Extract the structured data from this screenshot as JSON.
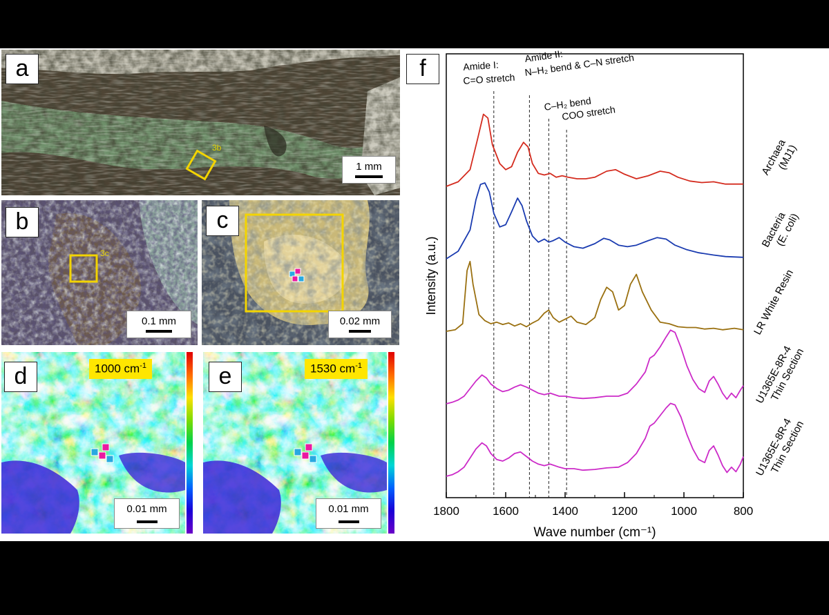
{
  "panels": {
    "a": {
      "letter": "a",
      "box_label": "3b",
      "scale": "1 mm"
    },
    "b": {
      "letter": "b",
      "box_label": "3c",
      "scale": "0.1 mm"
    },
    "c": {
      "letter": "c",
      "scale": "0.02 mm"
    },
    "d": {
      "letter": "d",
      "wavenumber": "1000 cm",
      "wavenumber_sup": "-1",
      "scale": "0.01 mm"
    },
    "e": {
      "letter": "e",
      "wavenumber": "1530 cm",
      "wavenumber_sup": "-1",
      "scale": "0.01 mm"
    },
    "f": {
      "letter": "f"
    }
  },
  "chart_data": {
    "type": "line",
    "xlabel": "Wave number (cm⁻¹)",
    "ylabel": "Intensity (a.u.)",
    "xlim": [
      1800,
      800
    ],
    "xticks": [
      1800,
      1600,
      1400,
      1200,
      1000,
      800
    ],
    "annotations": [
      {
        "text": [
          "Amide I:",
          "C=O stretch"
        ],
        "x": 1640
      },
      {
        "text": [
          "Amide II:",
          "N–H₂ bend & C–N stretch"
        ],
        "x": 1520
      },
      {
        "text": [
          "C–H₂ bend"
        ],
        "x": 1455
      },
      {
        "text": [
          "COO stretch"
        ],
        "x": 1395
      }
    ],
    "series": [
      {
        "name": "Archaea (MJ1)",
        "label_lines": [
          "Archaea",
          "(MJ1)"
        ],
        "color": "#d42b1e",
        "offset": 0.0,
        "points": [
          [
            1800,
            0.0
          ],
          [
            1760,
            0.06
          ],
          [
            1720,
            0.22
          ],
          [
            1695,
            0.62
          ],
          [
            1675,
            0.95
          ],
          [
            1660,
            0.9
          ],
          [
            1645,
            0.55
          ],
          [
            1620,
            0.3
          ],
          [
            1600,
            0.22
          ],
          [
            1580,
            0.26
          ],
          [
            1560,
            0.45
          ],
          [
            1540,
            0.58
          ],
          [
            1525,
            0.52
          ],
          [
            1510,
            0.3
          ],
          [
            1490,
            0.17
          ],
          [
            1470,
            0.15
          ],
          [
            1450,
            0.17
          ],
          [
            1430,
            0.12
          ],
          [
            1410,
            0.14
          ],
          [
            1390,
            0.12
          ],
          [
            1360,
            0.1
          ],
          [
            1330,
            0.1
          ],
          [
            1300,
            0.12
          ],
          [
            1260,
            0.2
          ],
          [
            1230,
            0.22
          ],
          [
            1200,
            0.16
          ],
          [
            1160,
            0.1
          ],
          [
            1120,
            0.14
          ],
          [
            1080,
            0.2
          ],
          [
            1050,
            0.18
          ],
          [
            1020,
            0.12
          ],
          [
            980,
            0.07
          ],
          [
            940,
            0.05
          ],
          [
            900,
            0.06
          ],
          [
            860,
            0.03
          ],
          [
            820,
            0.03
          ],
          [
            800,
            0.03
          ]
        ]
      },
      {
        "name": "Bacteria (E. coli)",
        "label_lines": [
          "Bacteria",
          "(E. coli)"
        ],
        "color": "#1a3bb0",
        "offset": 1.0,
        "points": [
          [
            1800,
            0.0
          ],
          [
            1760,
            0.1
          ],
          [
            1720,
            0.38
          ],
          [
            1700,
            0.78
          ],
          [
            1685,
            0.98
          ],
          [
            1670,
            1.0
          ],
          [
            1655,
            0.88
          ],
          [
            1640,
            0.6
          ],
          [
            1620,
            0.42
          ],
          [
            1600,
            0.45
          ],
          [
            1580,
            0.62
          ],
          [
            1560,
            0.8
          ],
          [
            1545,
            0.7
          ],
          [
            1530,
            0.5
          ],
          [
            1510,
            0.3
          ],
          [
            1490,
            0.22
          ],
          [
            1470,
            0.26
          ],
          [
            1455,
            0.22
          ],
          [
            1440,
            0.24
          ],
          [
            1420,
            0.28
          ],
          [
            1400,
            0.22
          ],
          [
            1370,
            0.16
          ],
          [
            1340,
            0.14
          ],
          [
            1300,
            0.2
          ],
          [
            1270,
            0.27
          ],
          [
            1250,
            0.25
          ],
          [
            1220,
            0.18
          ],
          [
            1190,
            0.16
          ],
          [
            1160,
            0.18
          ],
          [
            1120,
            0.24
          ],
          [
            1090,
            0.28
          ],
          [
            1060,
            0.26
          ],
          [
            1030,
            0.18
          ],
          [
            990,
            0.12
          ],
          [
            950,
            0.08
          ],
          [
            900,
            0.05
          ],
          [
            860,
            0.03
          ],
          [
            800,
            0.02
          ]
        ]
      },
      {
        "name": "LR White Resin",
        "label_lines": [
          "LR White Resin"
        ],
        "color": "#9a7010",
        "offset": 2.0,
        "points": [
          [
            1800,
            0.0
          ],
          [
            1770,
            0.02
          ],
          [
            1745,
            0.1
          ],
          [
            1730,
            0.8
          ],
          [
            1720,
            0.92
          ],
          [
            1710,
            0.62
          ],
          [
            1690,
            0.22
          ],
          [
            1670,
            0.14
          ],
          [
            1650,
            0.1
          ],
          [
            1630,
            0.12
          ],
          [
            1610,
            0.09
          ],
          [
            1590,
            0.11
          ],
          [
            1570,
            0.07
          ],
          [
            1550,
            0.1
          ],
          [
            1530,
            0.06
          ],
          [
            1510,
            0.11
          ],
          [
            1490,
            0.15
          ],
          [
            1470,
            0.24
          ],
          [
            1455,
            0.28
          ],
          [
            1440,
            0.18
          ],
          [
            1420,
            0.12
          ],
          [
            1400,
            0.16
          ],
          [
            1380,
            0.2
          ],
          [
            1360,
            0.12
          ],
          [
            1330,
            0.09
          ],
          [
            1300,
            0.18
          ],
          [
            1280,
            0.42
          ],
          [
            1260,
            0.58
          ],
          [
            1240,
            0.52
          ],
          [
            1220,
            0.28
          ],
          [
            1200,
            0.34
          ],
          [
            1180,
            0.62
          ],
          [
            1160,
            0.75
          ],
          [
            1140,
            0.52
          ],
          [
            1110,
            0.28
          ],
          [
            1080,
            0.12
          ],
          [
            1050,
            0.1
          ],
          [
            1020,
            0.06
          ],
          [
            990,
            0.05
          ],
          [
            960,
            0.05
          ],
          [
            930,
            0.03
          ],
          [
            900,
            0.04
          ],
          [
            870,
            0.02
          ],
          [
            830,
            0.04
          ],
          [
            800,
            0.02
          ]
        ]
      },
      {
        "name": "U1365E-8R-4 Thin Section",
        "label_lines": [
          "U1365E-8R-4",
          "Thin Section"
        ],
        "color": "#cc2ac8",
        "offset": 3.0,
        "points": [
          [
            1800,
            0.0
          ],
          [
            1780,
            0.02
          ],
          [
            1760,
            0.05
          ],
          [
            1740,
            0.1
          ],
          [
            1720,
            0.2
          ],
          [
            1700,
            0.3
          ],
          [
            1680,
            0.38
          ],
          [
            1665,
            0.34
          ],
          [
            1650,
            0.26
          ],
          [
            1630,
            0.2
          ],
          [
            1610,
            0.16
          ],
          [
            1590,
            0.18
          ],
          [
            1570,
            0.22
          ],
          [
            1550,
            0.25
          ],
          [
            1530,
            0.22
          ],
          [
            1510,
            0.18
          ],
          [
            1490,
            0.14
          ],
          [
            1470,
            0.12
          ],
          [
            1450,
            0.14
          ],
          [
            1420,
            0.1
          ],
          [
            1400,
            0.1
          ],
          [
            1370,
            0.08
          ],
          [
            1340,
            0.07
          ],
          [
            1300,
            0.08
          ],
          [
            1260,
            0.1
          ],
          [
            1220,
            0.1
          ],
          [
            1190,
            0.14
          ],
          [
            1160,
            0.26
          ],
          [
            1130,
            0.42
          ],
          [
            1115,
            0.6
          ],
          [
            1100,
            0.64
          ],
          [
            1080,
            0.75
          ],
          [
            1060,
            0.88
          ],
          [
            1045,
            0.97
          ],
          [
            1030,
            0.94
          ],
          [
            1010,
            0.74
          ],
          [
            990,
            0.5
          ],
          [
            970,
            0.32
          ],
          [
            950,
            0.2
          ],
          [
            930,
            0.15
          ],
          [
            915,
            0.3
          ],
          [
            900,
            0.36
          ],
          [
            885,
            0.26
          ],
          [
            870,
            0.14
          ],
          [
            855,
            0.06
          ],
          [
            840,
            0.14
          ],
          [
            825,
            0.08
          ],
          [
            810,
            0.18
          ],
          [
            800,
            0.24
          ]
        ]
      },
      {
        "name": "U1365E-8R-4 Thin Section",
        "label_lines": [
          "U1365E-8R-4",
          "Thin Section"
        ],
        "color": "#cc2ac8",
        "offset": 4.0,
        "points": [
          [
            1800,
            0.0
          ],
          [
            1780,
            0.02
          ],
          [
            1760,
            0.06
          ],
          [
            1740,
            0.12
          ],
          [
            1720,
            0.24
          ],
          [
            1700,
            0.36
          ],
          [
            1680,
            0.44
          ],
          [
            1665,
            0.4
          ],
          [
            1650,
            0.3
          ],
          [
            1630,
            0.22
          ],
          [
            1610,
            0.2
          ],
          [
            1590,
            0.24
          ],
          [
            1570,
            0.3
          ],
          [
            1550,
            0.32
          ],
          [
            1530,
            0.26
          ],
          [
            1510,
            0.2
          ],
          [
            1490,
            0.16
          ],
          [
            1470,
            0.14
          ],
          [
            1450,
            0.16
          ],
          [
            1420,
            0.12
          ],
          [
            1400,
            0.1
          ],
          [
            1370,
            0.1
          ],
          [
            1340,
            0.08
          ],
          [
            1300,
            0.09
          ],
          [
            1260,
            0.11
          ],
          [
            1220,
            0.12
          ],
          [
            1190,
            0.18
          ],
          [
            1160,
            0.3
          ],
          [
            1130,
            0.5
          ],
          [
            1115,
            0.66
          ],
          [
            1100,
            0.7
          ],
          [
            1080,
            0.8
          ],
          [
            1060,
            0.9
          ],
          [
            1045,
            0.96
          ],
          [
            1030,
            0.94
          ],
          [
            1010,
            0.78
          ],
          [
            990,
            0.55
          ],
          [
            970,
            0.36
          ],
          [
            950,
            0.22
          ],
          [
            930,
            0.18
          ],
          [
            915,
            0.34
          ],
          [
            900,
            0.4
          ],
          [
            885,
            0.28
          ],
          [
            870,
            0.14
          ],
          [
            855,
            0.05
          ],
          [
            840,
            0.12
          ],
          [
            825,
            0.06
          ],
          [
            810,
            0.16
          ],
          [
            800,
            0.26
          ]
        ]
      }
    ]
  }
}
